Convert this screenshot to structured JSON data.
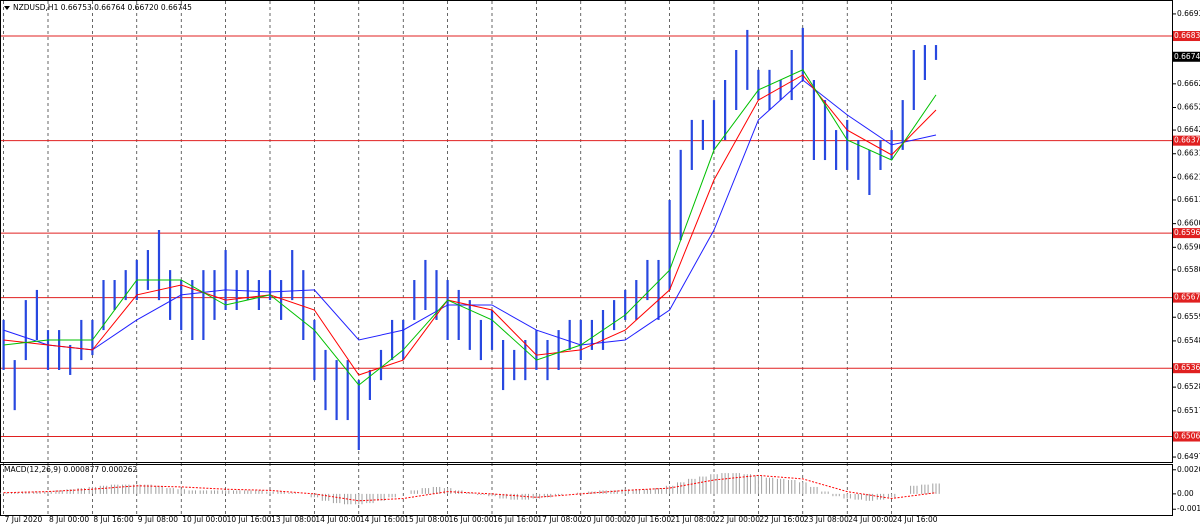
{
  "chart_data": [
    {
      "type": "range",
      "title": "NZDUSD,H1  0.66753 0.66764 0.66720 0.66745",
      "categories": [
        "7 Jul 2020",
        null,
        null,
        null,
        "8 Jul 00:00",
        null,
        null,
        null,
        "8 Jul 16:00",
        null,
        null,
        null,
        "9 Jul 08:00",
        null,
        null,
        null,
        "10 Jul 00:00",
        null,
        null,
        null,
        "10 Jul 16:00",
        null,
        null,
        null,
        "13 Jul 08:00",
        null,
        null,
        null,
        "14 Jul 00:00",
        null,
        null,
        null,
        "14 Jul 16:00",
        null,
        null,
        null,
        "15 Jul 08:00",
        null,
        null,
        null,
        "16 Jul 00:00",
        null,
        null,
        null,
        "16 Jul 16:00",
        null,
        null,
        null,
        "17 Jul 08:00",
        null,
        null,
        null,
        "20 Jul 00:00",
        null,
        null,
        null,
        "20 Jul 16:00",
        null,
        null,
        null,
        "21 Jul 08:00",
        null,
        null,
        null,
        "22 Jul 00:00",
        null,
        null,
        null,
        "22 Jul 16:00",
        null,
        null,
        null,
        "23 Jul 08:00",
        null,
        null,
        null,
        "24 Jul 00:00",
        null,
        null,
        null,
        "24 Jul 16:00",
        null,
        null,
        null,
        null
      ],
      "color": "#2848e0",
      "high": [
        0.65578,
        0.654,
        0.65666,
        0.65711,
        0.65533,
        0.65533,
        0.65467,
        0.65578,
        0.65578,
        0.65755,
        0.65755,
        0.65799,
        0.65844,
        0.65888,
        0.65977,
        0.65799,
        0.65755,
        0.65755,
        0.65799,
        0.65799,
        0.65888,
        0.65799,
        0.65799,
        0.65755,
        0.65799,
        0.65755,
        0.65888,
        0.65799,
        0.65578,
        0.65445,
        0.654,
        0.654,
        0.65311,
        0.65356,
        0.65445,
        0.65578,
        0.65578,
        0.65755,
        0.65844,
        0.65799,
        0.65755,
        0.65711,
        0.65666,
        0.65578,
        0.65622,
        0.65489,
        0.65445,
        0.65489,
        0.65533,
        0.65489,
        0.65533,
        0.65578,
        0.65578,
        0.65578,
        0.65622,
        0.65666,
        0.65711,
        0.65755,
        0.65844,
        0.65844,
        0.6611,
        0.66332,
        0.66465,
        0.66465,
        0.66553,
        0.66642,
        0.66775,
        0.66864,
        0.66687,
        0.66687,
        0.66642,
        0.66775,
        0.66873,
        0.66642,
        0.66553,
        0.6642,
        0.66465,
        0.66376,
        0.66332,
        0.66376,
        0.6642,
        0.66553,
        0.66775,
        0.66797,
        0.66797
      ],
      "low": [
        0.65356,
        0.65178,
        0.654,
        0.65489,
        0.65356,
        0.65356,
        0.65334,
        0.654,
        0.65422,
        0.65533,
        0.65622,
        0.65666,
        0.65666,
        0.65711,
        0.65666,
        0.65578,
        0.65533,
        0.65489,
        0.65489,
        0.65578,
        0.65622,
        0.65622,
        0.65666,
        0.65622,
        0.65666,
        0.65578,
        0.65666,
        0.65489,
        0.65311,
        0.65178,
        0.65134,
        0.65134,
        0.65001,
        0.65223,
        0.65311,
        0.654,
        0.654,
        0.65578,
        0.65622,
        0.65578,
        0.65489,
        0.65489,
        0.65445,
        0.654,
        0.65445,
        0.65267,
        0.65311,
        0.65311,
        0.65356,
        0.65311,
        0.65356,
        0.65445,
        0.654,
        0.65445,
        0.65445,
        0.65533,
        0.65578,
        0.65578,
        0.65666,
        0.65578,
        0.65711,
        0.65932,
        0.66243,
        0.66332,
        0.66332,
        0.66376,
        0.66509,
        0.66598,
        0.66553,
        0.66509,
        0.66553,
        0.66553,
        0.66642,
        0.66287,
        0.66287,
        0.66243,
        0.66243,
        0.66199,
        0.66132,
        0.66243,
        0.66287,
        0.66332,
        0.66509,
        0.66642,
        0.66731
      ],
      "indicators": [
        {
          "color": "#2020ff",
          "x": [
            0,
            4,
            8,
            12,
            16,
            20,
            24,
            28,
            32,
            36,
            40,
            44,
            48,
            52,
            56,
            60,
            64,
            68,
            72,
            76,
            80,
            84
          ],
          "values": [
            0.65533,
            0.65467,
            0.65445,
            0.65578,
            0.65689,
            0.65711,
            0.65702,
            0.65711,
            0.65489,
            0.65533,
            0.65644,
            0.65644,
            0.65533,
            0.65467,
            0.65489,
            0.65622,
            0.65977,
            0.66465,
            0.66642,
            0.66487,
            0.66354,
            0.66398
          ]
        },
        {
          "color": "#ff0000",
          "x": [
            0,
            4,
            8,
            12,
            16,
            20,
            24,
            28,
            32,
            36,
            40,
            44,
            48,
            52,
            56,
            60,
            64,
            68,
            72,
            76,
            80,
            84
          ],
          "values": [
            0.65489,
            0.65467,
            0.65445,
            0.65689,
            0.65733,
            0.65666,
            0.65689,
            0.65622,
            0.65334,
            0.654,
            0.65666,
            0.65622,
            0.65422,
            0.65445,
            0.65533,
            0.65711,
            0.66199,
            0.66553,
            0.66664,
            0.6642,
            0.6631,
            0.66509
          ]
        },
        {
          "color": "#00c000",
          "x": [
            0,
            4,
            8,
            12,
            16,
            20,
            24,
            28,
            32,
            36,
            40,
            44,
            48,
            52,
            56,
            60,
            64,
            68,
            72,
            76,
            80,
            84
          ],
          "values": [
            0.65467,
            0.65489,
            0.65489,
            0.65755,
            0.65755,
            0.65644,
            0.65689,
            0.65533,
            0.65289,
            0.65445,
            0.65666,
            0.65578,
            0.654,
            0.65467,
            0.656,
            0.65799,
            0.66332,
            0.66598,
            0.66687,
            0.66376,
            0.66287,
            0.66576
          ]
        }
      ],
      "levels": [
        0.66837,
        0.66373,
        0.65963,
        0.65677,
        0.65364,
        0.65061
      ],
      "level_color": "#e02020",
      "last": 0.66745,
      "ylim": [
        0.64948,
        0.66979
      ],
      "yticks": [
        0.66935,
        0.66625,
        {
          "value": 0.6652,
          "label": "0.66520"
        },
        {
          "value": 0.6642,
          "label": "0.66420"
        },
        0.66315,
        {
          "value": 0.6621,
          "label": "0.66210"
        },
        {
          "value": 0.6611,
          "label": "0.66110"
        },
        0.66005,
        {
          "value": 0.659,
          "label": "0.65900"
        },
        {
          "value": 0.658,
          "label": "0.65800"
        },
        {
          "value": 0.6559,
          "label": "0.65590"
        },
        0.65485,
        {
          "value": 0.6528,
          "label": "0.65280"
        },
        0.65175,
        {
          "value": 0.6497,
          "label": "0.64970"
        }
      ],
      "grid": true
    },
    {
      "type": "macd",
      "title": "MACD(12,26,9) 0.000877 0.000262",
      "color": "#a0a0a0",
      "values": [
        0.0001,
        0.0001,
        0.0002,
        0.0002,
        0.0002,
        0.0003,
        0.0004,
        0.0005,
        0.0006,
        0.0007,
        0.0008,
        0.0008,
        0.0008,
        0.0008,
        0.0007,
        0.0005,
        0.0004,
        0.0003,
        0.0003,
        0.0003,
        0.0003,
        0.0003,
        0.0003,
        0.0003,
        0.0002,
        0.0002,
        0.0001,
        0,
        -0.0003,
        -0.0006,
        -0.0008,
        -0.0009,
        -0.0009,
        -0.0008,
        -0.0006,
        -0.0003,
        0,
        0.0003,
        0.0005,
        0.0006,
        0.0005,
        0.0003,
        0.0001,
        -0.0001,
        -0.0002,
        -0.0004,
        -0.0005,
        -0.0005,
        -0.0004,
        -0.0003,
        -0.0001,
        0,
        0.0001,
        0.0002,
        0.0003,
        0.0003,
        0.0004,
        0.0004,
        0.0004,
        0.0005,
        0.0007,
        0.001,
        0.0013,
        0.0015,
        0.0017,
        0.0018,
        0.0018,
        0.0017,
        0.0016,
        0.0014,
        0.0013,
        0.0012,
        0.001,
        0.0006,
        0.0002,
        -0.0002,
        -0.0004,
        -0.0005,
        -0.0006,
        -0.0005,
        -0.0003,
        0,
        0.0007,
        0.0008,
        0.0009
      ],
      "signal": {
        "color": "#ff0000",
        "x": [
          0,
          4,
          8,
          12,
          16,
          20,
          24,
          28,
          32,
          36,
          40,
          44,
          48,
          52,
          56,
          60,
          64,
          68,
          72,
          76,
          80,
          84
        ],
        "values": [
          0.0001,
          0.0002,
          0.0004,
          0.0007,
          0.0006,
          0.0004,
          0.0003,
          0,
          -0.0006,
          -0.0004,
          0.0002,
          0,
          -0.0003,
          0,
          0.0003,
          0.0005,
          0.0012,
          0.0016,
          0.0013,
          0.0002,
          -0.0004,
          0.0001
        ]
      },
      "ylim": [
        -0.00183,
        0.0025
      ],
      "yticks": [
        0.002086,
        {
          "value": 0,
          "label": "0.00"
        },
        -0.00133
      ]
    }
  ]
}
